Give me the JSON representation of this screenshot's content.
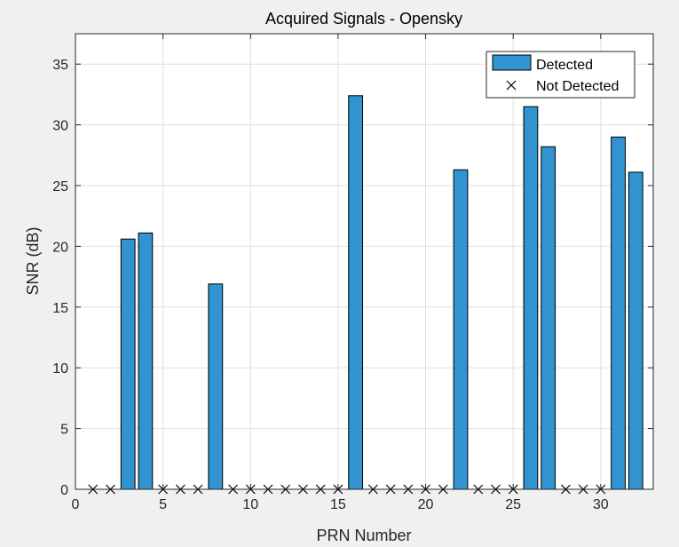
{
  "chart_data": {
    "type": "bar",
    "title": "Acquired Signals - Opensky",
    "xlabel": "PRN Number",
    "ylabel": "SNR (dB)",
    "xlim": [
      0,
      33
    ],
    "ylim": [
      0,
      37.5
    ],
    "xticks": [
      0,
      5,
      10,
      15,
      20,
      25,
      30
    ],
    "yticks": [
      0,
      5,
      10,
      15,
      20,
      25,
      30,
      35
    ],
    "grid": true,
    "legend_position": "top-right",
    "bar_color": "#3193cf",
    "series": [
      {
        "name": "Detected",
        "x": [
          3,
          4,
          8,
          16,
          22,
          26,
          27,
          31,
          32
        ],
        "values": [
          20.6,
          21.1,
          16.9,
          32.4,
          26.3,
          31.5,
          28.2,
          29.0,
          26.1
        ]
      },
      {
        "name": "Not Detected",
        "marker": "x",
        "x": [
          1,
          2,
          5,
          6,
          7,
          9,
          10,
          11,
          12,
          13,
          14,
          15,
          17,
          18,
          19,
          20,
          21,
          23,
          24,
          25,
          28,
          29,
          30
        ],
        "values": [
          0,
          0,
          0,
          0,
          0,
          0,
          0,
          0,
          0,
          0,
          0,
          0,
          0,
          0,
          0,
          0,
          0,
          0,
          0,
          0,
          0,
          0,
          0
        ]
      }
    ]
  }
}
